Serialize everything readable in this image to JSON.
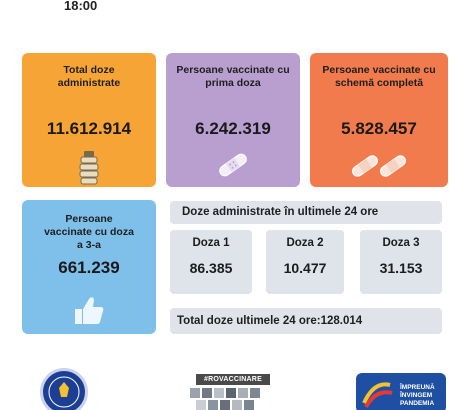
{
  "header": {
    "time": "18:00"
  },
  "cards": {
    "total_doses": {
      "label": "Total doze administrate",
      "value": "11.612.914",
      "icon": "vial-stack-icon",
      "color": "#f7a437"
    },
    "first_dose": {
      "label": "Persoane vaccinate cu prima doza",
      "value": "6.242.319",
      "icon": "bandage-icon",
      "color": "#b89fcf"
    },
    "full_scheme": {
      "label": "Persoane vaccinate cu schemă completă",
      "value": "5.828.457",
      "icon": "double-bandage-icon",
      "color": "#f17b4c"
    },
    "third_dose": {
      "label": "Persoane vaccinate cu doza a 3-a",
      "value": "661.239",
      "icon": "thumbs-up-icon",
      "color": "#7fc0ea"
    }
  },
  "last24": {
    "title": "Doze administrate în ultimele 24 ore",
    "doses": [
      {
        "label": "Doza 1",
        "value": "86.385"
      },
      {
        "label": "Doza 2",
        "value": "10.477"
      },
      {
        "label": "Doza 3",
        "value": "31.153"
      }
    ],
    "total": "Total doze ultimele 24 ore:128.014"
  },
  "footer": {
    "campaign_tag": "#ROVACCINARE",
    "partner_text": "ÎMPREUNĂ ÎNVINGEM PANDEMIA"
  }
}
